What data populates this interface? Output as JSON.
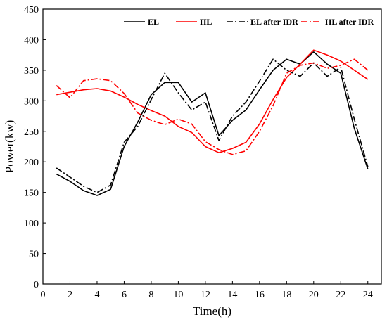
{
  "chart_data": {
    "type": "line",
    "xlabel": "Time(h)",
    "ylabel": "Power(kw)",
    "xlim": [
      0,
      25
    ],
    "ylim": [
      0,
      450
    ],
    "xticks": [
      0,
      2,
      4,
      6,
      8,
      10,
      12,
      14,
      16,
      18,
      20,
      22,
      24
    ],
    "yticks": [
      0,
      50,
      100,
      150,
      200,
      250,
      300,
      350,
      400,
      450
    ],
    "grid": false,
    "legend_position": "top",
    "x": [
      1,
      2,
      3,
      4,
      5,
      6,
      7,
      8,
      9,
      10,
      11,
      12,
      13,
      14,
      15,
      16,
      17,
      18,
      19,
      20,
      21,
      22,
      23,
      24
    ],
    "series": [
      {
        "name": "EL",
        "color": "#000000",
        "dash": "solid",
        "values": [
          180,
          168,
          153,
          145,
          155,
          225,
          265,
          310,
          330,
          330,
          298,
          313,
          243,
          268,
          285,
          318,
          350,
          368,
          360,
          380,
          360,
          345,
          255,
          188
        ]
      },
      {
        "name": "HL",
        "color": "#ff0000",
        "dash": "solid",
        "values": [
          310,
          314,
          318,
          320,
          316,
          306,
          294,
          284,
          275,
          258,
          248,
          225,
          215,
          222,
          232,
          262,
          302,
          338,
          360,
          383,
          375,
          365,
          350,
          335
        ]
      },
      {
        "name": "EL after IDR",
        "color": "#000000",
        "dash": "dashdot",
        "values": [
          190,
          175,
          160,
          150,
          162,
          232,
          258,
          302,
          345,
          313,
          285,
          298,
          235,
          275,
          298,
          332,
          368,
          350,
          340,
          362,
          340,
          355,
          270,
          192
        ]
      },
      {
        "name": "HL after IDR",
        "color": "#ff0000",
        "dash": "dashdot",
        "values": [
          325,
          305,
          333,
          336,
          333,
          312,
          280,
          268,
          261,
          270,
          262,
          233,
          220,
          212,
          218,
          250,
          292,
          345,
          358,
          362,
          353,
          358,
          368,
          350
        ]
      }
    ]
  }
}
